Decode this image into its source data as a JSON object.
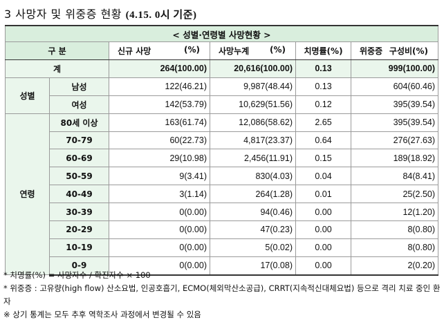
{
  "title": {
    "main": "3 사망자 및 위중증 현황",
    "sub": "(4.15. 0시 기준)"
  },
  "table": {
    "caption": "< 성별·연령별 사망현황 >",
    "headers": {
      "category": "구 분",
      "new_deaths": "신규 사망",
      "new_deaths_unit": "(%)",
      "cum_deaths": "사망누계",
      "cum_deaths_unit": "(%)",
      "cfr": "치명률(%)",
      "severe": "위중증",
      "severe_ratio": "구성비(%)"
    },
    "total": {
      "label": "계",
      "new": "264(100.00)",
      "cum": "20,616(100.00)",
      "cfr": "0.13",
      "severe": "999(100.00)"
    },
    "groups": [
      {
        "label": "성별",
        "rows": [
          {
            "label": "남성",
            "new": "122(46.21)",
            "cum": "9,987(48.44)",
            "cfr": "0.13",
            "severe": "604(60.46)"
          },
          {
            "label": "여성",
            "new": "142(53.79)",
            "cum": "10,629(51.56)",
            "cfr": "0.12",
            "severe": "395(39.54)"
          }
        ]
      },
      {
        "label": "연령",
        "rows": [
          {
            "label": "80세 이상",
            "new": "163(61.74)",
            "cum": "12,086(58.62)",
            "cfr": "2.65",
            "severe": "395(39.54)"
          },
          {
            "label": "70-79",
            "new": "60(22.73)",
            "cum": "4,817(23.37)",
            "cfr": "0.64",
            "severe": "276(27.63)"
          },
          {
            "label": "60-69",
            "new": "29(10.98)",
            "cum": "2,456(11.91)",
            "cfr": "0.15",
            "severe": "189(18.92)"
          },
          {
            "label": "50-59",
            "new": "9(3.41)",
            "cum": "830(4.03)",
            "cfr": "0.04",
            "severe": "84(8.41)"
          },
          {
            "label": "40-49",
            "new": "3(1.14)",
            "cum": "264(1.28)",
            "cfr": "0.01",
            "severe": "25(2.50)"
          },
          {
            "label": "30-39",
            "new": "0(0.00)",
            "cum": "94(0.46)",
            "cfr": "0.00",
            "severe": "12(1.20)"
          },
          {
            "label": "20-29",
            "new": "0(0.00)",
            "cum": "47(0.23)",
            "cfr": "0.00",
            "severe": "8(0.80)"
          },
          {
            "label": "10-19",
            "new": "0(0.00)",
            "cum": "5(0.02)",
            "cfr": "0.00",
            "severe": "8(0.80)"
          },
          {
            "label": "0-9",
            "new": "0(0.00)",
            "cum": "17(0.08)",
            "cfr": "0.00",
            "severe": "2(0.20)"
          }
        ]
      }
    ]
  },
  "notes": [
    "* 치명률(%) = 사망자수 / 확진자수 × 100",
    "* 위중증 : 고유량(high flow) 산소요법, 인공호흡기, ECMO(체외막산소공급), CRRT(지속적신대체요법) 등으로 격리 치료 중인 환자",
    "※ 상기 통계는 모두 추후 역학조사 과정에서 변경될 수 있음"
  ]
}
